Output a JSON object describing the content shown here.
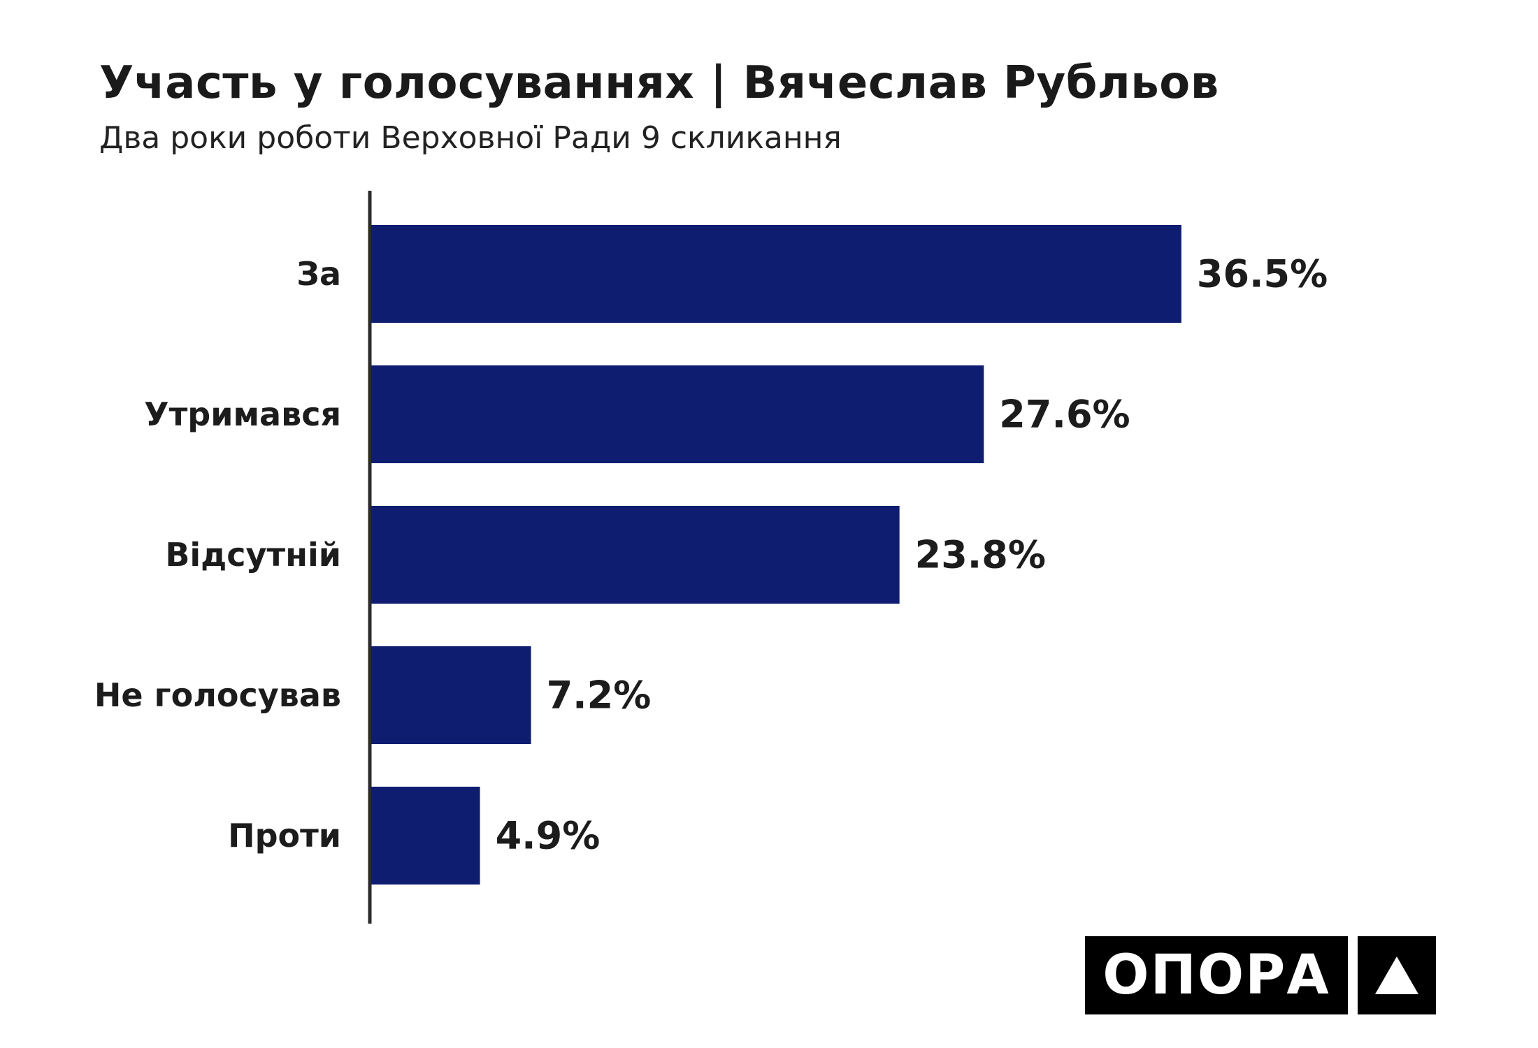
{
  "title": "Участь у голосуваннях | Вячеслав Рубльов",
  "subtitle": "Два роки роботи Верховної Ради 9 скликання",
  "logo": {
    "text": "ОПОРА",
    "mark_icon": "triangle-icon"
  },
  "colors": {
    "bar": "#0f1d70",
    "axis": "#2b2b2b",
    "text": "#1c1c1c"
  },
  "chart_data": {
    "type": "bar",
    "orientation": "horizontal",
    "categories": [
      "За",
      "Утримався",
      "Відсутній",
      "Не голосував",
      "Проти"
    ],
    "values": [
      36.5,
      27.6,
      23.8,
      7.2,
      4.9
    ],
    "value_labels": [
      "36.5%",
      "27.6%",
      "23.8%",
      "7.2%",
      "4.9%"
    ],
    "unit": "%",
    "title": "Участь у голосуваннях | Вячеслав Рубльов",
    "subtitle": "Два роки роботи Верховної Ради 9 скликання",
    "grid": false,
    "legend": "none"
  }
}
